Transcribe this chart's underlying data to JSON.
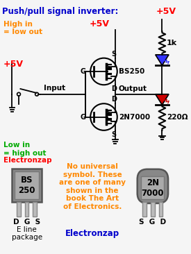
{
  "bg_color": "#f5f5f5",
  "title_text": "Push/pull signal inverter:",
  "title_color": "#0000cc",
  "title_fontsize": 8.5,
  "plus5v_top_left_text": "+5V",
  "plus5v_top_left_color": "#ff0000",
  "plus5v_mid_text": "+5V",
  "plus5v_mid_color": "#ff0000",
  "plus5v_right_text": "+5V",
  "plus5v_right_color": "#ff0000",
  "high_in_text": "High in\n= low out",
  "high_in_color": "#ff8800",
  "low_in_text": "Low in\n= high out",
  "low_in_color": "#00aa00",
  "electronzap_text": "Electronzap",
  "electronzap_color": "#ff0000",
  "bs250_label": "BS250",
  "n7000_label": "2N7000",
  "input_label": "Input",
  "output_label": "Output",
  "r1k_label": "1k",
  "r220_label": "220Ω",
  "note_text": "No universal\nsymbol. These\nare one of many\nshown in the\nbook The Art\nof Electronics.",
  "note_color": "#ff8800",
  "note2_text": "Electronzap",
  "note2_color": "#0000cc",
  "bs250_pkg_label": "BS\n250",
  "pkg_dgs_bs": "D  G  S",
  "pkg_eline": "E line\npackage",
  "n7000_pkg_label": "2N\n7000",
  "pkg_sgd_n7": "S  G  D",
  "blue_led_color": "#3333ff",
  "red_led_color": "#cc0000"
}
